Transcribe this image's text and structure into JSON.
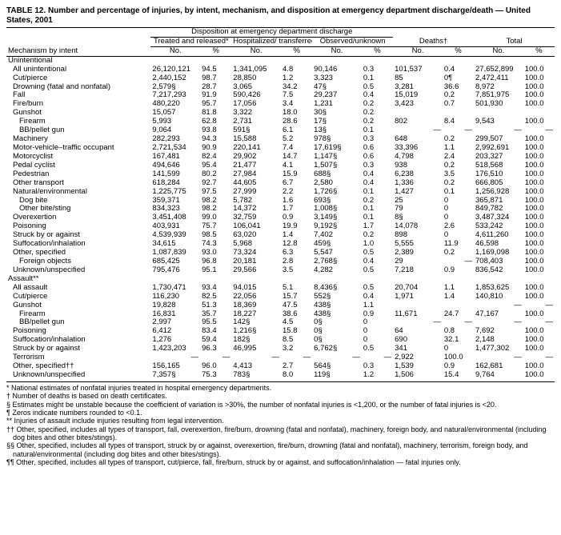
{
  "title": "TABLE 12. Number and percentage of injuries, by intent, mechanism, and disposition at emergency department discharge/death — United States, 2001",
  "header": {
    "disposition": "Disposition at emergency department discharge",
    "groups": [
      "Treated and released*",
      "Hospitalized/ transferred*",
      "Observed/unknown",
      "Deaths†",
      "Total"
    ],
    "mech": "Mechanism by intent",
    "no": "No.",
    "pct": "%"
  },
  "sections": [
    {
      "label": "Unintentional",
      "rows": [
        {
          "l": "All unintentional",
          "i": 1,
          "c": [
            "26,120,121",
            "94.5",
            "1,341,095",
            "4.8",
            "90,146",
            "0.3",
            "101,537",
            "0.4",
            "27,652,899",
            "100.0"
          ]
        },
        {
          "l": "Cut/pierce",
          "i": 1,
          "c": [
            "2,440,152",
            "98.7",
            "28,850",
            "1.2",
            "3,323",
            "0.1",
            "85",
            "0¶",
            "2,472,411",
            "100.0"
          ]
        },
        {
          "l": "Drowning (fatal and nonfatal)",
          "i": 1,
          "c": [
            "2,579§",
            "28.7",
            "3,065",
            "34.2",
            "47§",
            "0.5",
            "3,281",
            "36.6",
            "8,972",
            "100.0"
          ]
        },
        {
          "l": "Fall",
          "i": 1,
          "c": [
            "7,217,293",
            "91.9",
            "590,426",
            "7.5",
            "29,237",
            "0.4",
            "15,019",
            "0.2",
            "7,851,975",
            "100.0"
          ]
        },
        {
          "l": "Fire/burn",
          "i": 1,
          "c": [
            "480,220",
            "95.7",
            "17,056",
            "3.4",
            "1,231",
            "0.2",
            "3,423",
            "0.7",
            "501,930",
            "100.0"
          ]
        },
        {
          "l": "Gunshot",
          "i": 1,
          "c": [
            "15,057",
            "81.8",
            "3,322",
            "18.0",
            "30§",
            "0.2",
            "",
            "",
            "",
            ""
          ]
        },
        {
          "l": "Firearm",
          "i": 2,
          "c": [
            "5,993",
            "62.8",
            "2,731",
            "28.6",
            "17§",
            "0.2",
            "802",
            "8.4",
            "9,543",
            "100.0"
          ]
        },
        {
          "l": "BB/pellet gun",
          "i": 2,
          "c": [
            "9,064",
            "93.8",
            "591§",
            "6.1",
            "13§",
            "0.1",
            "—",
            "—",
            "—",
            "—"
          ]
        },
        {
          "l": "Machinery",
          "i": 1,
          "c": [
            "282,293",
            "94.3",
            "15,588",
            "5.2",
            "978§",
            "0.3",
            "648",
            "0.2",
            "299,507",
            "100.0"
          ]
        },
        {
          "l": "Motor-vehicle–traffic occupant",
          "i": 1,
          "c": [
            "2,721,534",
            "90.9",
            "220,141",
            "7.4",
            "17,619§",
            "0.6",
            "33,396",
            "1.1",
            "2,992,691",
            "100.0"
          ]
        },
        {
          "l": "Motorcyclist",
          "i": 1,
          "c": [
            "167,481",
            "82.4",
            "29,902",
            "14.7",
            "1,147§",
            "0.6",
            "4,798",
            "2.4",
            "203,327",
            "100.0"
          ]
        },
        {
          "l": "Pedal cyclist",
          "i": 1,
          "c": [
            "494,646",
            "95.4",
            "21,477",
            "4.1",
            "1,507§",
            "0.3",
            "938",
            "0.2",
            "518,568",
            "100.0"
          ]
        },
        {
          "l": "Pedestrian",
          "i": 1,
          "c": [
            "141,599",
            "80.2",
            "27,984",
            "15.9",
            "688§",
            "0.4",
            "6,238",
            "3.5",
            "176,510",
            "100.0"
          ]
        },
        {
          "l": "Other transport",
          "i": 1,
          "c": [
            "618,284",
            "92.7",
            "44,605",
            "6.7",
            "2,580",
            "0.4",
            "1,336",
            "0.2",
            "666,805",
            "100.0"
          ]
        },
        {
          "l": "Natural/environmental",
          "i": 1,
          "c": [
            "1,225,775",
            "97.5",
            "27,999",
            "2.2",
            "1,726§",
            "0.1",
            "1,427",
            "0.1",
            "1,256,928",
            "100.0"
          ]
        },
        {
          "l": "Dog bite",
          "i": 2,
          "c": [
            "359,371",
            "98.2",
            "5,782",
            "1.6",
            "693§",
            "0.2",
            "25",
            "0",
            "365,871",
            "100.0"
          ]
        },
        {
          "l": "Other bite/sting",
          "i": 2,
          "c": [
            "834,323",
            "98.2",
            "14,372",
            "1.7",
            "1,008§",
            "0.1",
            "79",
            "0",
            "849,782",
            "100.0"
          ]
        },
        {
          "l": "Overexertion",
          "i": 1,
          "c": [
            "3,451,408",
            "99.0",
            "32,759",
            "0.9",
            "3,149§",
            "0.1",
            "8§",
            "0",
            "3,487,324",
            "100.0"
          ]
        },
        {
          "l": "Poisoning",
          "i": 1,
          "c": [
            "403,931",
            "75.7",
            "106,041",
            "19.9",
            "9,192§",
            "1.7",
            "14,078",
            "2.6",
            "533,242",
            "100.0"
          ]
        },
        {
          "l": "Struck by or against",
          "i": 1,
          "c": [
            "4,539,939",
            "98.5",
            "63,020",
            "1.4",
            "7,402",
            "0.2",
            "898",
            "0",
            "4,611,260",
            "100.0"
          ]
        },
        {
          "l": "Suffocation/inhalation",
          "i": 1,
          "c": [
            "34,615",
            "74.3",
            "5,968",
            "12.8",
            "459§",
            "1.0",
            "5,555",
            "11.9",
            "46,598",
            "100.0"
          ]
        },
        {
          "l": "Other, specified",
          "i": 1,
          "c": [
            "1,087,839",
            "93.0",
            "73,324",
            "6.3",
            "5,547",
            "0.5",
            "2,389",
            "0.2",
            "1,169,098",
            "100.0"
          ]
        },
        {
          "l": "Foreign objects",
          "i": 2,
          "c": [
            "685,425",
            "96.8",
            "20,181",
            "2.8",
            "2,768§",
            "0.4",
            "29",
            "—",
            "708,403",
            "100.0"
          ]
        },
        {
          "l": "Unknown/unspecified",
          "i": 1,
          "c": [
            "795,476",
            "95.1",
            "29,566",
            "3.5",
            "4,282",
            "0.5",
            "7,218",
            "0.9",
            "836,542",
            "100.0"
          ]
        }
      ]
    },
    {
      "label": "Assault**",
      "rows": [
        {
          "l": "All assault",
          "i": 1,
          "c": [
            "1,730,471",
            "93.4",
            "94,015",
            "5.1",
            "8,436§",
            "0.5",
            "20,704",
            "1.1",
            "1,853,625",
            "100.0"
          ]
        },
        {
          "l": "Cut/pierce",
          "i": 1,
          "c": [
            "116,230",
            "82.5",
            "22,056",
            "15.7",
            "552§",
            "0.4",
            "1,971",
            "1.4",
            "140,810",
            "100.0"
          ]
        },
        {
          "l": "Gunshot",
          "i": 1,
          "c": [
            "19,828",
            "51.3",
            "18,369",
            "47.5",
            "438§",
            "1.1",
            "",
            "",
            "—",
            "—"
          ]
        },
        {
          "l": "Firearm",
          "i": 2,
          "c": [
            "16,831",
            "35.7",
            "18,227",
            "38.6",
            "438§",
            "0.9",
            "11,671",
            "24.7",
            "47,167",
            "100.0"
          ]
        },
        {
          "l": "BB/pellet gun",
          "i": 2,
          "c": [
            "2,997",
            "95.5",
            "142§",
            "4.5",
            "0§",
            "0",
            "—",
            "—",
            "—",
            "—"
          ]
        },
        {
          "l": "Poisoning",
          "i": 1,
          "c": [
            "6,412",
            "83.4",
            "1,216§",
            "15.8",
            "0§",
            "0",
            "64",
            "0.8",
            "7,692",
            "100.0"
          ]
        },
        {
          "l": "Suffocation/inhalation",
          "i": 1,
          "c": [
            "1,276",
            "59.4",
            "182§",
            "8.5",
            "0§",
            "0",
            "690",
            "32.1",
            "2,148",
            "100.0"
          ]
        },
        {
          "l": "Struck by or against",
          "i": 1,
          "c": [
            "1,423,203",
            "96.3",
            "46,995",
            "3.2",
            "6,762§",
            "0.5",
            "341",
            "0",
            "1,477,302",
            "100.0"
          ]
        },
        {
          "l": "Terrorism",
          "i": 1,
          "c": [
            "—",
            "—",
            "—",
            "—",
            "—",
            "—",
            "2,922",
            "100.0",
            "—",
            "—"
          ]
        },
        {
          "l": "Other, specified††",
          "i": 1,
          "c": [
            "156,165",
            "96.0",
            "4,413",
            "2.7",
            "564§",
            "0.3",
            "1,539",
            "0.9",
            "162,681",
            "100.0"
          ]
        },
        {
          "l": "Unknown/unspecified",
          "i": 1,
          "c": [
            "7,357§",
            "75.3",
            "783§",
            "8.0",
            "119§",
            "1.2",
            "1,506",
            "15.4",
            "9,764",
            "100.0"
          ]
        }
      ]
    }
  ],
  "footnotes": [
    "* National estimates of nonfatal injuries treated in hospital emergency departments.",
    "† Number of deaths is based on death certificates.",
    "§ Estimates might be unstable because the coefficient of variation is >30%, the number of nonfatal injuries is <1,200, or the number of fatal injuries is <20.",
    "¶ Zeros indicate numbers rounded to <0.1.",
    "** Injuries of assault include injuries resulting from legal intervention.",
    "†† Other, specified, includes all types of transport, fall, overexertion, fire/burn, drowning (fatal and nonfatal), machinery, foreign body, and natural/environmental (including dog bites and other bites/stings).",
    "§§ Other, specified, includes all types of transport, struck by or against, overexertion, fire/burn, drowning (fatal and nonfatal), machinery, terrorism, foreign body, and natural/environmental (including dog bites and other bites/stings).",
    "¶¶ Other, specified, includes all types of transport, cut/pierce, fall, fire/burn, struck by or against, and suffocation/inhalation — fatal injuries only."
  ]
}
